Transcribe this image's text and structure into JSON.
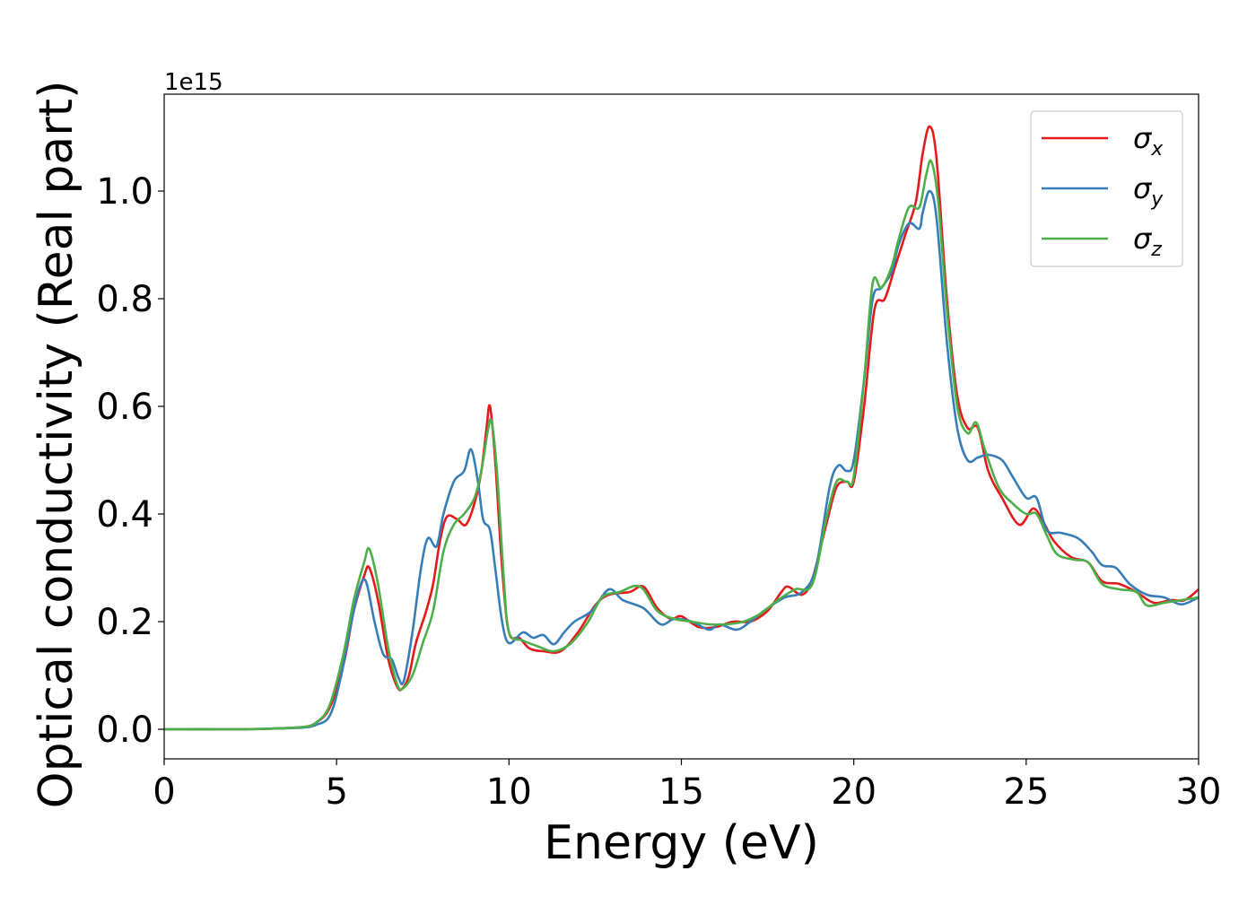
{
  "chart_data": {
    "type": "line",
    "xlabel": "Energy (eV)",
    "ylabel": "Optical conductivity (Real part)",
    "y_offset_label": "1e15",
    "xlim": [
      0,
      30
    ],
    "ylim": [
      -0.055,
      1.18
    ],
    "x_ticks": [
      0,
      5,
      10,
      15,
      20,
      25,
      30
    ],
    "y_ticks": [
      0.0,
      0.2,
      0.4,
      0.6,
      0.8,
      1.0
    ],
    "x_tick_labels": [
      "0",
      "5",
      "10",
      "15",
      "20",
      "25",
      "30"
    ],
    "y_tick_labels": [
      "0.0",
      "0.2",
      "0.4",
      "0.6",
      "0.8",
      "1.0"
    ],
    "grid": false,
    "legend_position": "top-right",
    "series": [
      {
        "name": "σx",
        "legend_symbol": "σ",
        "legend_sub": "x",
        "color": "#e41a1c",
        "points": [
          [
            0,
            0
          ],
          [
            2,
            0
          ],
          [
            3,
            0.001
          ],
          [
            4,
            0.004
          ],
          [
            4.4,
            0.012
          ],
          [
            4.8,
            0.04
          ],
          [
            5.2,
            0.12
          ],
          [
            5.5,
            0.22
          ],
          [
            5.8,
            0.285
          ],
          [
            5.95,
            0.3
          ],
          [
            6.2,
            0.24
          ],
          [
            6.5,
            0.13
          ],
          [
            6.75,
            0.08
          ],
          [
            6.9,
            0.075
          ],
          [
            7.1,
            0.1
          ],
          [
            7.3,
            0.16
          ],
          [
            7.6,
            0.22
          ],
          [
            7.8,
            0.27
          ],
          [
            8.0,
            0.35
          ],
          [
            8.2,
            0.395
          ],
          [
            8.5,
            0.39
          ],
          [
            8.75,
            0.38
          ],
          [
            9.0,
            0.42
          ],
          [
            9.2,
            0.48
          ],
          [
            9.35,
            0.56
          ],
          [
            9.45,
            0.6
          ],
          [
            9.6,
            0.5
          ],
          [
            9.8,
            0.3
          ],
          [
            10.0,
            0.18
          ],
          [
            10.3,
            0.17
          ],
          [
            10.6,
            0.15
          ],
          [
            11.0,
            0.145
          ],
          [
            11.5,
            0.145
          ],
          [
            12.0,
            0.18
          ],
          [
            12.5,
            0.23
          ],
          [
            12.9,
            0.25
          ],
          [
            13.5,
            0.255
          ],
          [
            13.9,
            0.265
          ],
          [
            14.3,
            0.225
          ],
          [
            14.7,
            0.205
          ],
          [
            15.0,
            0.21
          ],
          [
            15.5,
            0.19
          ],
          [
            16.0,
            0.19
          ],
          [
            16.5,
            0.2
          ],
          [
            17.0,
            0.2
          ],
          [
            17.5,
            0.22
          ],
          [
            17.9,
            0.255
          ],
          [
            18.1,
            0.265
          ],
          [
            18.5,
            0.25
          ],
          [
            18.8,
            0.28
          ],
          [
            19.2,
            0.38
          ],
          [
            19.5,
            0.45
          ],
          [
            19.8,
            0.46
          ],
          [
            20.0,
            0.46
          ],
          [
            20.3,
            0.6
          ],
          [
            20.6,
            0.78
          ],
          [
            20.9,
            0.8
          ],
          [
            21.2,
            0.86
          ],
          [
            21.5,
            0.92
          ],
          [
            21.8,
            0.98
          ],
          [
            22.0,
            1.07
          ],
          [
            22.2,
            1.12
          ],
          [
            22.4,
            1.06
          ],
          [
            22.7,
            0.8
          ],
          [
            23.0,
            0.62
          ],
          [
            23.3,
            0.56
          ],
          [
            23.6,
            0.56
          ],
          [
            23.9,
            0.48
          ],
          [
            24.3,
            0.43
          ],
          [
            24.8,
            0.38
          ],
          [
            25.2,
            0.41
          ],
          [
            25.5,
            0.385
          ],
          [
            25.8,
            0.35
          ],
          [
            26.3,
            0.32
          ],
          [
            26.8,
            0.31
          ],
          [
            27.2,
            0.275
          ],
          [
            27.7,
            0.27
          ],
          [
            28.2,
            0.255
          ],
          [
            28.7,
            0.235
          ],
          [
            29.2,
            0.24
          ],
          [
            29.6,
            0.24
          ],
          [
            30.0,
            0.26
          ]
        ]
      },
      {
        "name": "σy",
        "legend_symbol": "σ",
        "legend_sub": "y",
        "color": "#377eb8",
        "points": [
          [
            0,
            0
          ],
          [
            2,
            0
          ],
          [
            3,
            0.001
          ],
          [
            4,
            0.003
          ],
          [
            4.4,
            0.008
          ],
          [
            4.8,
            0.025
          ],
          [
            5.1,
            0.09
          ],
          [
            5.4,
            0.19
          ],
          [
            5.65,
            0.26
          ],
          [
            5.85,
            0.275
          ],
          [
            6.1,
            0.2
          ],
          [
            6.35,
            0.14
          ],
          [
            6.6,
            0.13
          ],
          [
            6.8,
            0.095
          ],
          [
            6.95,
            0.09
          ],
          [
            7.2,
            0.18
          ],
          [
            7.45,
            0.3
          ],
          [
            7.65,
            0.355
          ],
          [
            7.9,
            0.34
          ],
          [
            8.1,
            0.4
          ],
          [
            8.4,
            0.46
          ],
          [
            8.7,
            0.48
          ],
          [
            8.9,
            0.52
          ],
          [
            9.1,
            0.46
          ],
          [
            9.25,
            0.39
          ],
          [
            9.45,
            0.37
          ],
          [
            9.6,
            0.3
          ],
          [
            9.8,
            0.2
          ],
          [
            10.0,
            0.16
          ],
          [
            10.4,
            0.18
          ],
          [
            10.7,
            0.17
          ],
          [
            11.0,
            0.175
          ],
          [
            11.3,
            0.158
          ],
          [
            11.6,
            0.18
          ],
          [
            11.9,
            0.2
          ],
          [
            12.4,
            0.22
          ],
          [
            12.9,
            0.26
          ],
          [
            13.3,
            0.24
          ],
          [
            13.9,
            0.225
          ],
          [
            14.4,
            0.195
          ],
          [
            14.8,
            0.205
          ],
          [
            15.3,
            0.2
          ],
          [
            15.8,
            0.185
          ],
          [
            16.1,
            0.195
          ],
          [
            16.6,
            0.185
          ],
          [
            17.0,
            0.2
          ],
          [
            17.5,
            0.225
          ],
          [
            18.0,
            0.245
          ],
          [
            18.5,
            0.255
          ],
          [
            18.9,
            0.3
          ],
          [
            19.3,
            0.45
          ],
          [
            19.55,
            0.49
          ],
          [
            19.8,
            0.48
          ],
          [
            20.0,
            0.5
          ],
          [
            20.3,
            0.65
          ],
          [
            20.55,
            0.8
          ],
          [
            20.8,
            0.82
          ],
          [
            21.1,
            0.85
          ],
          [
            21.3,
            0.9
          ],
          [
            21.6,
            0.94
          ],
          [
            21.9,
            0.93
          ],
          [
            22.0,
            0.96
          ],
          [
            22.2,
            1.0
          ],
          [
            22.4,
            0.95
          ],
          [
            22.7,
            0.72
          ],
          [
            23.0,
            0.56
          ],
          [
            23.3,
            0.5
          ],
          [
            23.6,
            0.505
          ],
          [
            23.9,
            0.51
          ],
          [
            24.3,
            0.5
          ],
          [
            24.6,
            0.47
          ],
          [
            25.0,
            0.43
          ],
          [
            25.3,
            0.43
          ],
          [
            25.6,
            0.37
          ],
          [
            26.0,
            0.365
          ],
          [
            26.5,
            0.355
          ],
          [
            26.9,
            0.33
          ],
          [
            27.2,
            0.305
          ],
          [
            27.6,
            0.3
          ],
          [
            28.0,
            0.27
          ],
          [
            28.5,
            0.25
          ],
          [
            29.0,
            0.245
          ],
          [
            29.5,
            0.232
          ],
          [
            30.0,
            0.245
          ]
        ]
      },
      {
        "name": "σz",
        "legend_symbol": "σ",
        "legend_sub": "z",
        "color": "#4daf4a",
        "points": [
          [
            0,
            0
          ],
          [
            2,
            0
          ],
          [
            3,
            0.001
          ],
          [
            4,
            0.004
          ],
          [
            4.4,
            0.012
          ],
          [
            4.8,
            0.045
          ],
          [
            5.2,
            0.14
          ],
          [
            5.5,
            0.24
          ],
          [
            5.8,
            0.31
          ],
          [
            5.95,
            0.335
          ],
          [
            6.2,
            0.27
          ],
          [
            6.5,
            0.15
          ],
          [
            6.75,
            0.085
          ],
          [
            6.9,
            0.075
          ],
          [
            7.2,
            0.1
          ],
          [
            7.5,
            0.16
          ],
          [
            7.8,
            0.22
          ],
          [
            8.1,
            0.33
          ],
          [
            8.4,
            0.38
          ],
          [
            8.7,
            0.4
          ],
          [
            9.0,
            0.43
          ],
          [
            9.2,
            0.48
          ],
          [
            9.4,
            0.56
          ],
          [
            9.5,
            0.57
          ],
          [
            9.65,
            0.48
          ],
          [
            9.85,
            0.28
          ],
          [
            10.0,
            0.18
          ],
          [
            10.4,
            0.165
          ],
          [
            10.8,
            0.155
          ],
          [
            11.3,
            0.145
          ],
          [
            11.8,
            0.16
          ],
          [
            12.3,
            0.2
          ],
          [
            12.7,
            0.245
          ],
          [
            13.2,
            0.255
          ],
          [
            13.8,
            0.265
          ],
          [
            14.3,
            0.22
          ],
          [
            14.8,
            0.205
          ],
          [
            15.3,
            0.2
          ],
          [
            15.8,
            0.195
          ],
          [
            16.3,
            0.195
          ],
          [
            16.8,
            0.2
          ],
          [
            17.3,
            0.215
          ],
          [
            17.8,
            0.24
          ],
          [
            18.3,
            0.26
          ],
          [
            18.8,
            0.27
          ],
          [
            19.2,
            0.39
          ],
          [
            19.5,
            0.46
          ],
          [
            19.8,
            0.46
          ],
          [
            20.0,
            0.47
          ],
          [
            20.3,
            0.65
          ],
          [
            20.55,
            0.83
          ],
          [
            20.8,
            0.82
          ],
          [
            21.1,
            0.86
          ],
          [
            21.3,
            0.91
          ],
          [
            21.6,
            0.97
          ],
          [
            21.9,
            0.97
          ],
          [
            22.1,
            1.03
          ],
          [
            22.25,
            1.055
          ],
          [
            22.45,
            0.98
          ],
          [
            22.7,
            0.78
          ],
          [
            23.0,
            0.6
          ],
          [
            23.3,
            0.55
          ],
          [
            23.55,
            0.57
          ],
          [
            23.8,
            0.52
          ],
          [
            24.2,
            0.45
          ],
          [
            24.6,
            0.42
          ],
          [
            25.0,
            0.4
          ],
          [
            25.3,
            0.4
          ],
          [
            25.6,
            0.36
          ],
          [
            25.9,
            0.325
          ],
          [
            26.4,
            0.315
          ],
          [
            26.8,
            0.31
          ],
          [
            27.2,
            0.27
          ],
          [
            27.7,
            0.26
          ],
          [
            28.2,
            0.255
          ],
          [
            28.5,
            0.23
          ],
          [
            29.0,
            0.235
          ],
          [
            29.5,
            0.24
          ],
          [
            30.0,
            0.245
          ]
        ]
      }
    ]
  }
}
